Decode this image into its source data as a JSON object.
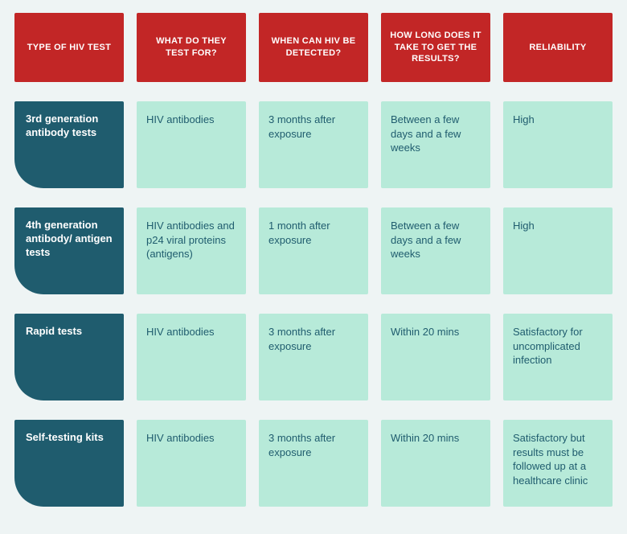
{
  "table": {
    "type": "table",
    "background_color": "#eef4f4",
    "header_bg": "#c22626",
    "header_text_color": "#ffffff",
    "rowlabel_bg": "#1f5c6e",
    "rowlabel_text_color": "#ffffff",
    "cell_bg": "#b7ead9",
    "cell_text_color": "#1f5c6e",
    "header_fontsize": 11,
    "body_fontsize": 13,
    "columns": [
      "TYPE OF HIV TEST",
      "WHAT DO THEY TEST FOR?",
      "WHEN CAN HIV BE DETECTED?",
      "HOW LONG DOES IT TAKE TO GET THE RESULTS?",
      "RELIABILITY"
    ],
    "rows": [
      {
        "label": "3rd generation antibody tests",
        "cells": [
          "HIV antibodies",
          "3 months after exposure",
          "Between a few days and a few weeks",
          "High"
        ]
      },
      {
        "label": "4th generation antibody/ antigen tests",
        "cells": [
          "HIV antibodies and p24 viral proteins (antigens)",
          "1 month after exposure",
          "Between a few days and a few weeks",
          "High"
        ]
      },
      {
        "label": "Rapid tests",
        "cells": [
          "HIV antibodies",
          "3 months after exposure",
          "Within 20 mins",
          "Satisfactory for uncomplicated infection"
        ]
      },
      {
        "label": "Self-testing kits",
        "cells": [
          "HIV antibodies",
          "3 months after exposure",
          "Within 20 mins",
          "Satisfactory but results must be followed up at a healthcare clinic"
        ]
      }
    ]
  }
}
